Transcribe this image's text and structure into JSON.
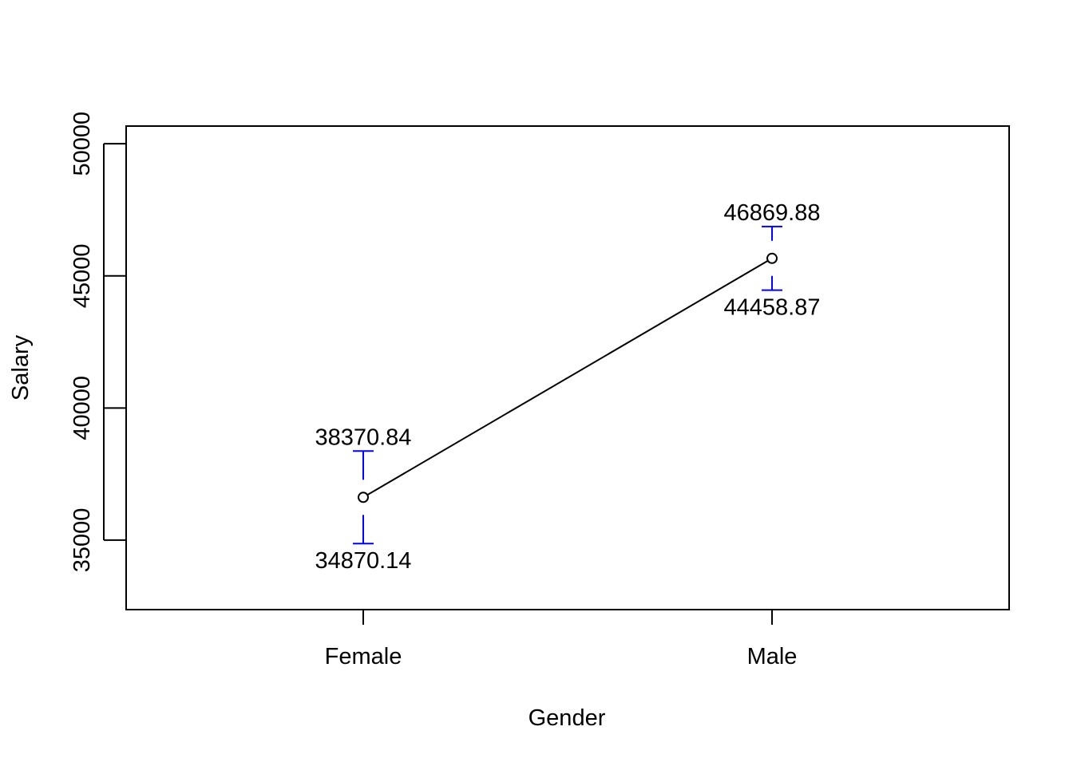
{
  "chart_data": {
    "type": "line",
    "title": "",
    "xlabel": "Gender",
    "ylabel": "Salary",
    "categories": [
      "Female",
      "Male"
    ],
    "series": [
      {
        "values": [
          36620,
          45664
        ],
        "lower": [
          34870.14,
          44458.87
        ],
        "upper": [
          38370.84,
          46869.88
        ],
        "lower_labels": [
          "34870.14",
          "44458.87"
        ],
        "upper_labels": [
          "38370.84",
          "46869.88"
        ]
      }
    ],
    "yticks": [
      35000,
      40000,
      45000,
      50000
    ],
    "ytick_labels": [
      "35000",
      "40000",
      "45000",
      "50000"
    ],
    "ylim": [
      32370,
      50670
    ],
    "xlim": [
      0.42,
      2.58
    ],
    "grid": false,
    "legend": "none",
    "colors": {
      "line": "#000000",
      "error_bars": "#0000ff",
      "text": "#000000"
    }
  }
}
